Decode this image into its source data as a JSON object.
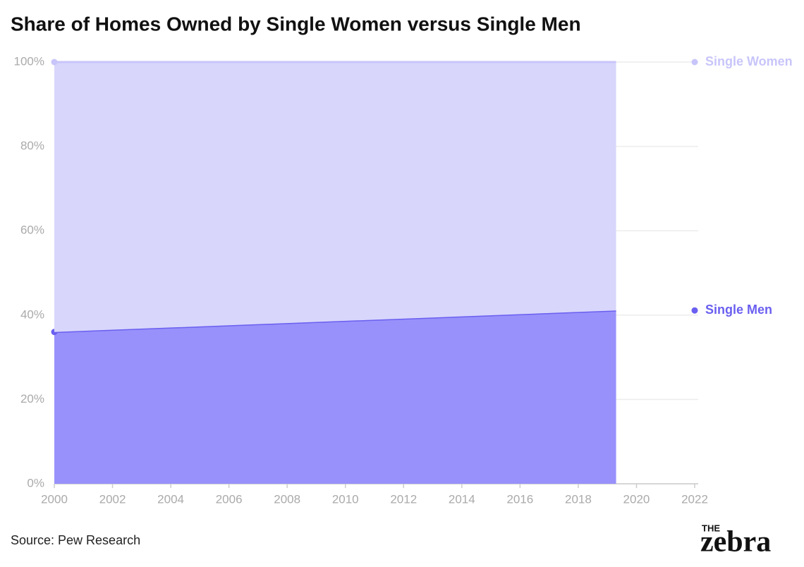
{
  "chart_data": {
    "type": "stacked_area",
    "title": "Share of Homes Owned by Single Women versus Single Men",
    "x": [
      2000,
      2019.3
    ],
    "series": [
      {
        "name": "Single Men",
        "color": "#6a5ff0",
        "fill": "#9891fb",
        "values": [
          36,
          41.1
        ]
      },
      {
        "name": "Single Women",
        "color": "#c8c5fa",
        "fill": "#d8d6fb",
        "values": [
          64,
          58.9
        ]
      }
    ],
    "xlim": [
      2000,
      2022
    ],
    "xticks": [
      2000,
      2002,
      2004,
      2006,
      2008,
      2010,
      2012,
      2014,
      2016,
      2018,
      2020,
      2022
    ],
    "ylim": [
      0,
      100
    ],
    "yticks": [
      {
        "value": 0,
        "label": "0%"
      },
      {
        "value": 20,
        "label": "20%"
      },
      {
        "value": 40,
        "label": "40%"
      },
      {
        "value": 60,
        "label": "60%"
      },
      {
        "value": 80,
        "label": "80%"
      },
      {
        "value": 100,
        "label": "100%"
      }
    ],
    "grid": true,
    "source": "Source: Pew Research",
    "logo": [
      "THE",
      "zebra"
    ]
  }
}
